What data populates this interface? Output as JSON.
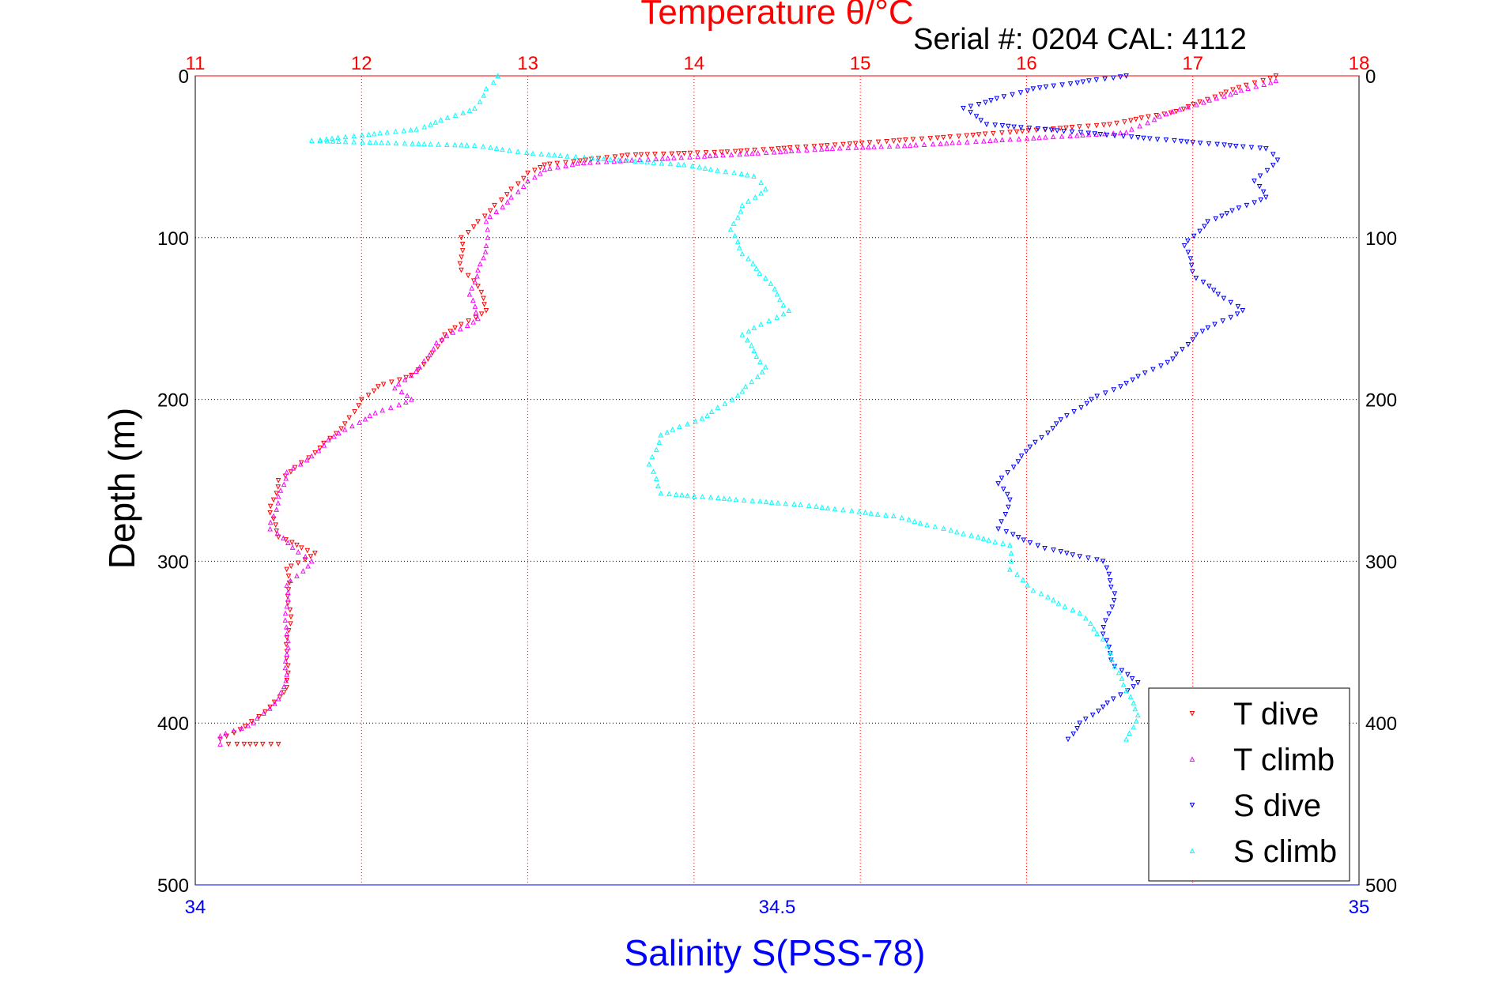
{
  "chart_data": {
    "type": "scatter",
    "title": "Temperature θ/°C",
    "subtitle": "Serial #: 0204  CAL: 4112",
    "xlabel_top": "Temperature θ/°C",
    "xlabel_bottom": "Salinity S(PSS-78)",
    "ylabel": "Depth (m)",
    "temp_range": [
      11,
      18
    ],
    "sal_range": [
      34,
      35
    ],
    "ylim": [
      0,
      500
    ],
    "temp_ticks": [
      "11",
      "12",
      "13",
      "14",
      "15",
      "16",
      "17",
      "18"
    ],
    "sal_ticks": [
      "34",
      "34.5",
      "35"
    ],
    "depth_ticks": [
      "0",
      "100",
      "200",
      "300",
      "400",
      "500"
    ],
    "grid": true,
    "legend_position": "bottom-right",
    "colors": {
      "T dive": "#ff0000",
      "T climb": "#ff00ff",
      "S dive": "#0000ff",
      "S climb": "#00ffff",
      "temp_axis": "#ff0000",
      "sal_axis": "#0000ff"
    },
    "series": [
      {
        "name": "T dive",
        "axis": "temp",
        "marker": "triangle-down",
        "points": [
          [
            17.5,
            0
          ],
          [
            17.2,
            10
          ],
          [
            16.9,
            22
          ],
          [
            16.5,
            30
          ],
          [
            15.5,
            38
          ],
          [
            14.8,
            43
          ],
          [
            14.2,
            47
          ],
          [
            13.6,
            49
          ],
          [
            13.1,
            55
          ],
          [
            13,
            60
          ],
          [
            12.9,
            70
          ],
          [
            12.8,
            80
          ],
          [
            12.7,
            90
          ],
          [
            12.6,
            100
          ],
          [
            12.6,
            120
          ],
          [
            12.7,
            130
          ],
          [
            12.75,
            145
          ],
          [
            12.5,
            160
          ],
          [
            12.4,
            175
          ],
          [
            12.3,
            185
          ],
          [
            12.1,
            192
          ],
          [
            12,
            200
          ],
          [
            11.9,
            215
          ],
          [
            11.75,
            230
          ],
          [
            11.6,
            242
          ],
          [
            11.5,
            250
          ],
          [
            11.45,
            270
          ],
          [
            11.5,
            285
          ],
          [
            11.72,
            295
          ],
          [
            11.55,
            305
          ],
          [
            11.57,
            330
          ],
          [
            11.55,
            360
          ],
          [
            11.55,
            378
          ],
          [
            11.45,
            390
          ],
          [
            11.3,
            402
          ],
          [
            11.15,
            410
          ],
          [
            11.2,
            413
          ],
          [
            11.5,
            413
          ]
        ]
      },
      {
        "name": "T climb",
        "axis": "temp",
        "marker": "triangle-up",
        "points": [
          [
            17.5,
            3
          ],
          [
            17.1,
            15
          ],
          [
            16.8,
            25
          ],
          [
            16.6,
            35
          ],
          [
            15.3,
            43
          ],
          [
            14.8,
            45
          ],
          [
            14.35,
            48
          ],
          [
            13.3,
            54
          ],
          [
            13.1,
            58
          ],
          [
            13,
            65
          ],
          [
            12.9,
            75
          ],
          [
            12.75,
            90
          ],
          [
            12.75,
            105
          ],
          [
            12.7,
            120
          ],
          [
            12.65,
            135
          ],
          [
            12.7,
            150
          ],
          [
            12.45,
            165
          ],
          [
            12.35,
            180
          ],
          [
            12.2,
            193
          ],
          [
            12.3,
            200
          ],
          [
            12.05,
            210
          ],
          [
            11.8,
            225
          ],
          [
            11.7,
            235
          ],
          [
            11.55,
            245
          ],
          [
            11.5,
            260
          ],
          [
            11.45,
            280
          ],
          [
            11.7,
            300
          ],
          [
            11.55,
            315
          ],
          [
            11.55,
            345
          ],
          [
            11.55,
            370
          ],
          [
            11.5,
            385
          ],
          [
            11.35,
            400
          ],
          [
            11.15,
            408
          ],
          [
            11.15,
            413
          ]
        ]
      },
      {
        "name": "S dive",
        "axis": "sal",
        "marker": "triangle-down",
        "points": [
          [
            34.8,
            0
          ],
          [
            34.72,
            8
          ],
          [
            34.66,
            20
          ],
          [
            34.68,
            30
          ],
          [
            34.92,
            45
          ],
          [
            34.93,
            52
          ],
          [
            34.91,
            65
          ],
          [
            34.92,
            75
          ],
          [
            34.87,
            90
          ],
          [
            34.85,
            105
          ],
          [
            34.86,
            125
          ],
          [
            34.9,
            145
          ],
          [
            34.86,
            160
          ],
          [
            34.84,
            175
          ],
          [
            34.8,
            190
          ],
          [
            34.77,
            200
          ],
          [
            34.74,
            215
          ],
          [
            34.71,
            235
          ],
          [
            34.69,
            252
          ],
          [
            34.7,
            262
          ],
          [
            34.69,
            280
          ],
          [
            34.73,
            292
          ],
          [
            34.78,
            300
          ],
          [
            34.79,
            320
          ],
          [
            34.78,
            345
          ],
          [
            34.79,
            365
          ],
          [
            34.81,
            375
          ],
          [
            34.78,
            390
          ],
          [
            34.76,
            400
          ],
          [
            34.75,
            410
          ]
        ]
      },
      {
        "name": "S climb",
        "axis": "sal",
        "marker": "triangle-up",
        "points": [
          [
            34.26,
            0
          ],
          [
            34.25,
            8
          ],
          [
            34.24,
            20
          ],
          [
            34.19,
            33
          ],
          [
            34.1,
            40
          ],
          [
            34.24,
            43
          ],
          [
            34.29,
            48
          ],
          [
            34.42,
            55
          ],
          [
            34.48,
            62
          ],
          [
            34.49,
            70
          ],
          [
            34.47,
            80
          ],
          [
            34.46,
            95
          ],
          [
            34.47,
            110
          ],
          [
            34.49,
            125
          ],
          [
            34.51,
            145
          ],
          [
            34.47,
            160
          ],
          [
            34.49,
            180
          ],
          [
            34.47,
            195
          ],
          [
            34.44,
            210
          ],
          [
            34.4,
            222
          ],
          [
            34.39,
            240
          ],
          [
            34.4,
            258
          ],
          [
            34.52,
            265
          ],
          [
            34.6,
            272
          ],
          [
            34.66,
            283
          ],
          [
            34.7,
            290
          ],
          [
            34.7,
            305
          ],
          [
            34.72,
            318
          ],
          [
            34.76,
            332
          ],
          [
            34.78,
            348
          ],
          [
            34.79,
            365
          ],
          [
            34.8,
            380
          ],
          [
            34.81,
            395
          ],
          [
            34.8,
            410
          ]
        ]
      }
    ]
  }
}
